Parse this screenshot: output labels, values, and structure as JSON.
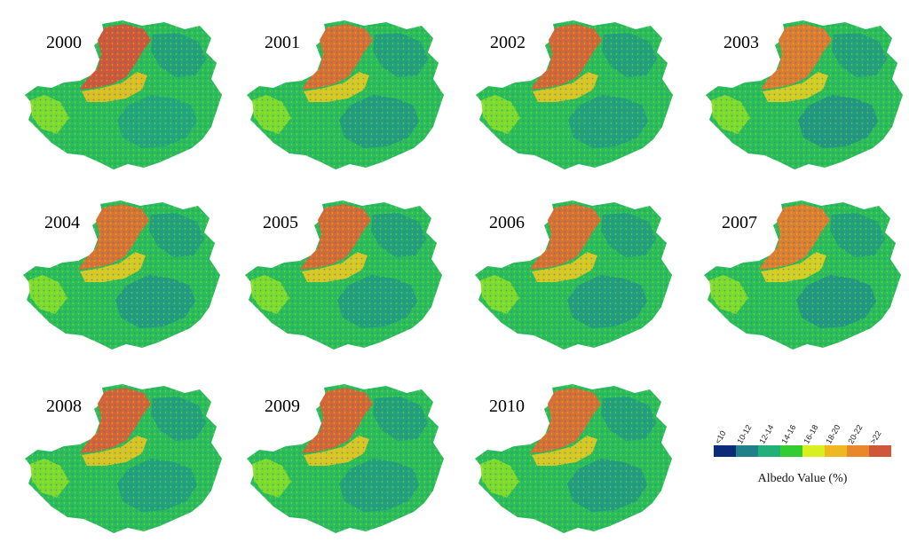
{
  "panels": [
    {
      "year": "2000",
      "warmth": 1.0
    },
    {
      "year": "2001",
      "warmth": 0.7
    },
    {
      "year": "2002",
      "warmth": 0.8
    },
    {
      "year": "2003",
      "warmth": 0.55
    },
    {
      "year": "2004",
      "warmth": 0.65
    },
    {
      "year": "2005",
      "warmth": 0.75
    },
    {
      "year": "2006",
      "warmth": 0.7
    },
    {
      "year": "2007",
      "warmth": 0.5
    },
    {
      "year": "2008",
      "warmth": 0.85
    },
    {
      "year": "2009",
      "warmth": 0.8
    },
    {
      "year": "2010",
      "warmth": 0.7
    }
  ],
  "legend": {
    "title": "Albedo Value (%)",
    "classes": [
      {
        "label": "<10",
        "color": "#0b2a78"
      },
      {
        "label": "10-12",
        "color": "#1f7f8a"
      },
      {
        "label": "12-14",
        "color": "#22b07a"
      },
      {
        "label": "14-16",
        "color": "#33cc33"
      },
      {
        "label": "16-18",
        "color": "#d8f020"
      },
      {
        "label": "18-20",
        "color": "#f0b820"
      },
      {
        "label": "20-22",
        "color": "#e8882a"
      },
      {
        "label": ">22",
        "color": "#d0583a"
      }
    ]
  }
}
